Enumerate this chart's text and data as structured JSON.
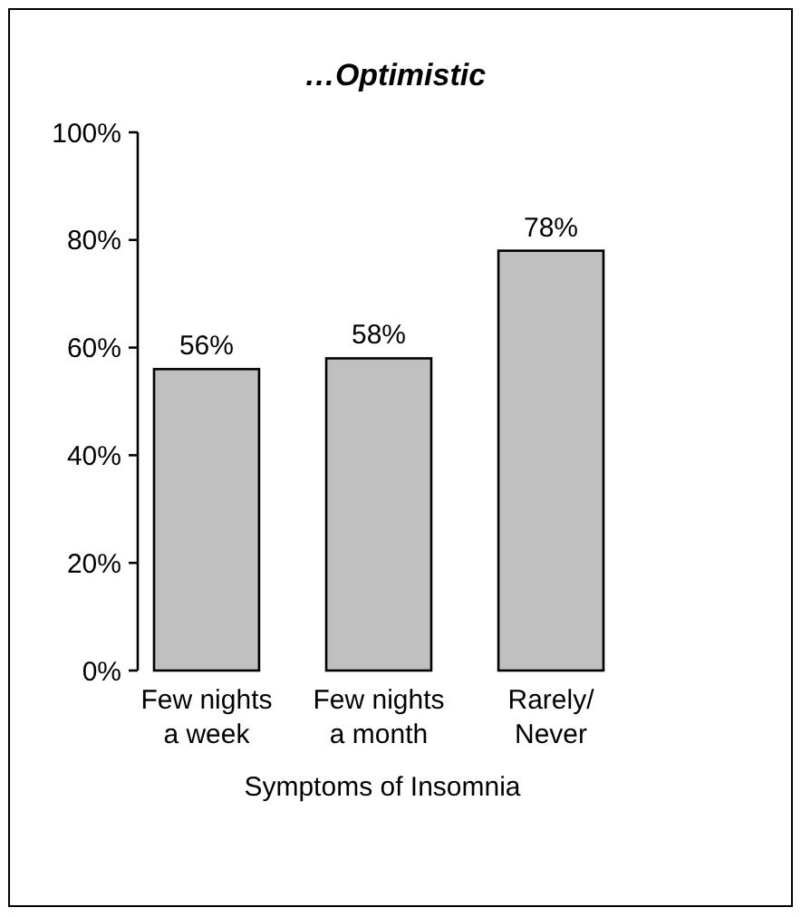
{
  "chart_data": {
    "type": "bar",
    "title": "…Optimistic",
    "xlabel": "Symptoms of Insomnia",
    "categories": [
      "Few nights\na week",
      "Few nights\na month",
      "Rarely/\nNever"
    ],
    "values": [
      56,
      58,
      78
    ],
    "value_labels": [
      "56%",
      "58%",
      "78%"
    ],
    "color": "#c0c0c0",
    "ylim": [
      0,
      100
    ],
    "yticks": [
      {
        "value": 0,
        "label": "0%"
      },
      {
        "value": 20,
        "label": "20%"
      },
      {
        "value": 40,
        "label": "40%"
      },
      {
        "value": 60,
        "label": "60%"
      },
      {
        "value": 80,
        "label": "80%"
      },
      {
        "value": 100,
        "label": "100%"
      }
    ],
    "grid": false
  }
}
